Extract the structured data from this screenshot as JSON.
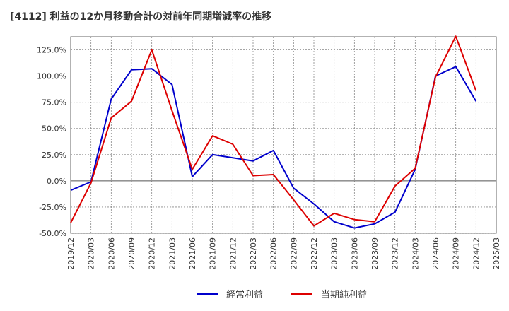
{
  "chart_data": {
    "type": "line",
    "title": "[4112]  利益の12か月移動合計の対前年同期増減率の推移",
    "xlabel": "",
    "ylabel": "",
    "ylim": [
      -50,
      137.5
    ],
    "yticks": [
      -50,
      -25,
      0,
      25,
      50,
      75,
      100,
      125
    ],
    "ytick_labels": [
      "-50.0%",
      "-25.0%",
      "0.0%",
      "25.0%",
      "50.0%",
      "75.0%",
      "100.0%",
      "125.0%"
    ],
    "x_labels": [
      "2019/12",
      "2020/03",
      "2020/06",
      "2020/09",
      "2020/12",
      "2021/03",
      "2021/06",
      "2021/09",
      "2021/12",
      "2022/03",
      "2022/06",
      "2022/09",
      "2022/12",
      "2023/03",
      "2023/06",
      "2023/09",
      "2023/12",
      "2024/03",
      "2024/06",
      "2024/09",
      "2024/12",
      "2025/03"
    ],
    "grid": true,
    "legend_position": "bottom",
    "series": [
      {
        "name": "経常利益",
        "color": "#0000cc",
        "values": [
          -9,
          -1,
          78,
          106,
          107,
          92,
          4,
          25,
          22,
          19,
          29,
          -7,
          -22,
          -39,
          -45,
          -41,
          -30,
          11,
          100,
          109,
          76,
          null
        ]
      },
      {
        "name": "当期純利益",
        "color": "#dd0000",
        "values": [
          -40,
          -2,
          60,
          76,
          125,
          67,
          11,
          43,
          35,
          5,
          6,
          -18,
          -43,
          -31,
          -37,
          -39,
          -5,
          12,
          99,
          138,
          86,
          null
        ]
      }
    ]
  }
}
